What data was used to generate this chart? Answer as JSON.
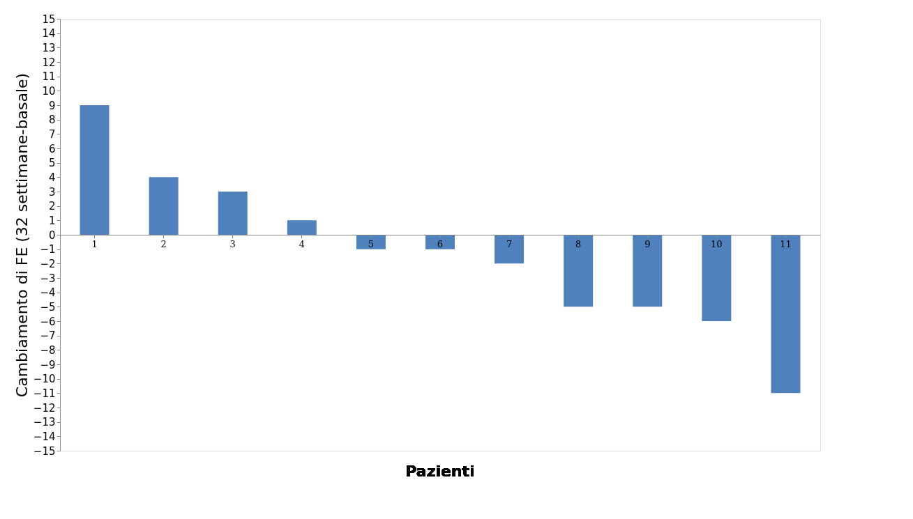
{
  "chart_data": {
    "type": "bar",
    "xlabel": "Pazienti",
    "ylabel": "Cambiamento di FE (32 settimane-basale)",
    "categories": [
      "1",
      "2",
      "3",
      "4",
      "5",
      "6",
      "7",
      "8",
      "9",
      "10",
      "11"
    ],
    "values": [
      9,
      4,
      3,
      1,
      -1,
      -1,
      -2,
      -5,
      -5,
      -6,
      -11
    ],
    "color": "#4f81bd",
    "ylim": [
      -15,
      15
    ],
    "yticks": [
      -15,
      -14,
      -13,
      -12,
      -11,
      -10,
      -9,
      -8,
      -7,
      -6,
      -5,
      -4,
      -3,
      -2,
      -1,
      0,
      1,
      2,
      3,
      4,
      5,
      6,
      7,
      8,
      9,
      10,
      11,
      12,
      13,
      14,
      15
    ],
    "grid": false
  }
}
